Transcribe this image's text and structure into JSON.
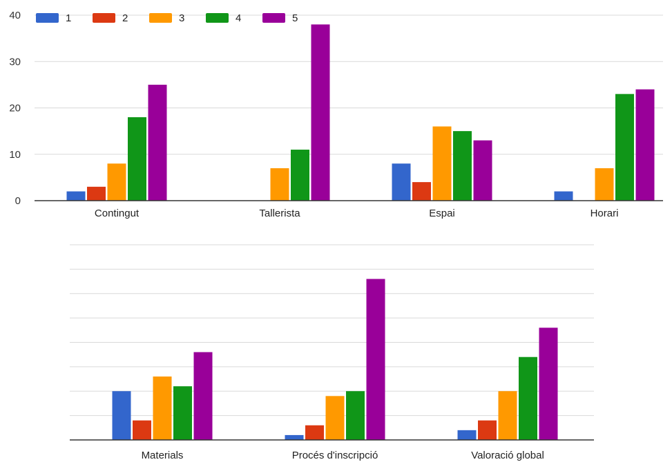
{
  "colors": {
    "1": "#3366cc",
    "2": "#dc3912",
    "3": "#ff9900",
    "4": "#109618",
    "5": "#990099",
    "grid": "#d9d9d9",
    "axis": "#333333"
  },
  "chart_data": [
    {
      "type": "bar",
      "categories": [
        "Contingut",
        "Tallerista",
        "Espai",
        "Horari"
      ],
      "series": [
        {
          "name": "1",
          "values": [
            2,
            0,
            8,
            2
          ]
        },
        {
          "name": "2",
          "values": [
            3,
            0,
            4,
            0
          ]
        },
        {
          "name": "3",
          "values": [
            8,
            7,
            16,
            7
          ]
        },
        {
          "name": "4",
          "values": [
            18,
            11,
            15,
            23
          ]
        },
        {
          "name": "5",
          "values": [
            25,
            38,
            13,
            24
          ]
        }
      ],
      "yticks": [
        "0",
        "10",
        "20",
        "30",
        "40"
      ],
      "ylim": [
        0,
        40
      ],
      "legend": "top-left",
      "grid": true
    },
    {
      "type": "bar",
      "categories": [
        "Materials",
        "Procés d'inscripció",
        "Valoració global"
      ],
      "series": [
        {
          "name": "1",
          "values": [
            10,
            1,
            2
          ]
        },
        {
          "name": "2",
          "values": [
            4,
            3,
            4
          ]
        },
        {
          "name": "3",
          "values": [
            13,
            9,
            10
          ]
        },
        {
          "name": "4",
          "values": [
            11,
            10,
            17
          ]
        },
        {
          "name": "5",
          "values": [
            18,
            33,
            23
          ]
        }
      ],
      "ylim": [
        0,
        40
      ],
      "grid": true,
      "yticks": []
    }
  ]
}
